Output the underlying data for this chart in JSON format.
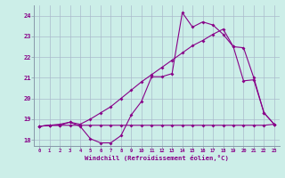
{
  "xlabel": "Windchill (Refroidissement éolien,°C)",
  "bg_color": "#cceee8",
  "line_color": "#880088",
  "grid_color": "#aabbcc",
  "ylim": [
    17.7,
    24.5
  ],
  "xlim": [
    -0.5,
    23.5
  ],
  "yticks": [
    18,
    19,
    20,
    21,
    22,
    23,
    24
  ],
  "xticks": [
    0,
    1,
    2,
    3,
    4,
    5,
    6,
    7,
    8,
    9,
    10,
    11,
    12,
    13,
    14,
    15,
    16,
    17,
    18,
    19,
    20,
    21,
    22,
    23
  ],
  "line1_x": [
    0,
    1,
    2,
    3,
    4,
    5,
    6,
    7,
    8,
    9,
    10,
    11,
    12,
    13,
    14,
    15,
    16,
    17,
    18,
    19,
    20,
    21,
    22,
    23
  ],
  "line1_y": [
    18.65,
    18.7,
    18.7,
    18.85,
    18.65,
    18.05,
    17.85,
    17.85,
    18.2,
    19.2,
    19.85,
    21.05,
    21.05,
    21.2,
    24.15,
    23.45,
    23.7,
    23.55,
    23.1,
    22.5,
    20.85,
    20.9,
    19.3,
    18.75
  ],
  "line2_x": [
    0,
    1,
    2,
    3,
    4,
    5,
    6,
    7,
    8,
    9,
    10,
    11,
    12,
    13,
    14,
    15,
    16,
    17,
    18,
    19,
    20,
    21,
    22,
    23
  ],
  "line2_y": [
    18.65,
    18.7,
    18.75,
    18.85,
    18.75,
    19.0,
    19.3,
    19.6,
    20.0,
    20.4,
    20.8,
    21.15,
    21.5,
    21.85,
    22.2,
    22.55,
    22.8,
    23.1,
    23.35,
    22.5,
    22.45,
    21.0,
    19.3,
    18.75
  ],
  "line3_x": [
    0,
    1,
    2,
    3,
    4,
    5,
    6,
    7,
    8,
    9,
    10,
    11,
    12,
    13,
    14,
    15,
    16,
    17,
    18,
    19,
    20,
    21,
    22,
    23
  ],
  "line3_y": [
    18.65,
    18.7,
    18.7,
    18.7,
    18.7,
    18.7,
    18.7,
    18.7,
    18.7,
    18.7,
    18.7,
    18.7,
    18.7,
    18.7,
    18.7,
    18.7,
    18.7,
    18.7,
    18.7,
    18.7,
    18.7,
    18.7,
    18.7,
    18.75
  ]
}
